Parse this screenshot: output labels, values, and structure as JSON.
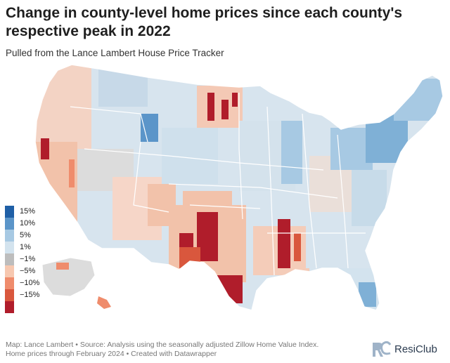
{
  "header": {
    "title": "Change in county-level home prices since each county's respective peak in 2022",
    "subtitle": "Pulled from the Lance Lambert House Price Tracker"
  },
  "legend": {
    "items": [
      {
        "label": "15%",
        "color": "#1f5fa6"
      },
      {
        "label": "10%",
        "color": "#5b95c9"
      },
      {
        "label": "5%",
        "color": "#a7c9e3"
      },
      {
        "label": "1%",
        "color": "#d3e3ee"
      },
      {
        "label": "−1%",
        "color": "#bdbdbd"
      },
      {
        "label": "−5%",
        "color": "#f7c8b0"
      },
      {
        "label": "−10%",
        "color": "#ef8c6c"
      },
      {
        "label": "−15%",
        "color": "#d9573d"
      },
      {
        "label": "",
        "color": "#b01d2b"
      }
    ]
  },
  "map": {
    "region": "United States counties",
    "colors": {
      "state_border": "#ffffff",
      "strong_decline": "#b01d2b",
      "decline": "#ef8c6c",
      "mild_decline": "#f7c8b0",
      "flat": "#bdbdbd",
      "mild_gain": "#d3e3ee",
      "gain": "#a7c9e3",
      "strong_gain": "#5b95c9"
    }
  },
  "footer": {
    "line1": "Map: Lance Lambert • Source: Analysis using the seasonally adjusted Zillow Home Value Index.",
    "line2": "Home prices through February 2024 • Created with Datawrapper"
  },
  "brand": {
    "name": "ResiClub",
    "logo_icon": "rc-logo-icon",
    "logo_color": "#9fb3c8"
  }
}
